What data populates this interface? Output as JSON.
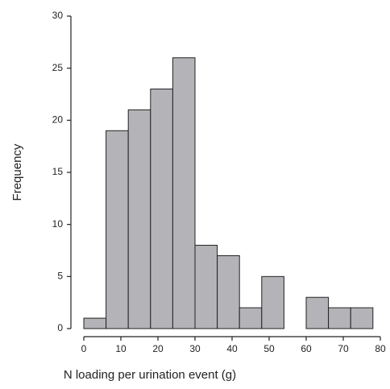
{
  "chart_data": {
    "type": "histogram",
    "xlabel": "N loading per urination event (g)",
    "ylabel": "Frequency",
    "bins": [
      0,
      6,
      12,
      18,
      24,
      30,
      36,
      42,
      48,
      54,
      60,
      66,
      72,
      78
    ],
    "values": [
      1,
      19,
      21,
      23,
      26,
      8,
      7,
      2,
      5,
      0,
      3,
      2,
      2
    ],
    "color": "#b4b4b8",
    "xlim": [
      0,
      80
    ],
    "xticks": [
      0,
      10,
      20,
      30,
      40,
      50,
      60,
      70,
      80
    ],
    "ylim": [
      0,
      30
    ],
    "yticks": [
      0,
      5,
      10,
      15,
      20,
      25,
      30
    ]
  }
}
